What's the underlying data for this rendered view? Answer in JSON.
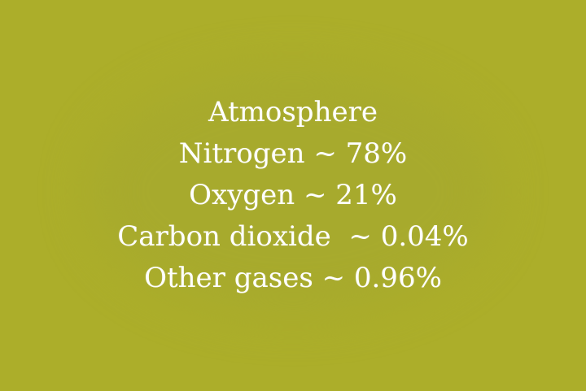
{
  "title": "Atmosphere",
  "lines": [
    "Nitrogen ~ 78%",
    "Oxygen ~ 21%",
    "Carbon dioxide  ~ 0.04%",
    "Other gases ~ 0.96%"
  ],
  "colors": {
    "background": "#acae2a",
    "text": "#ffffff"
  }
}
